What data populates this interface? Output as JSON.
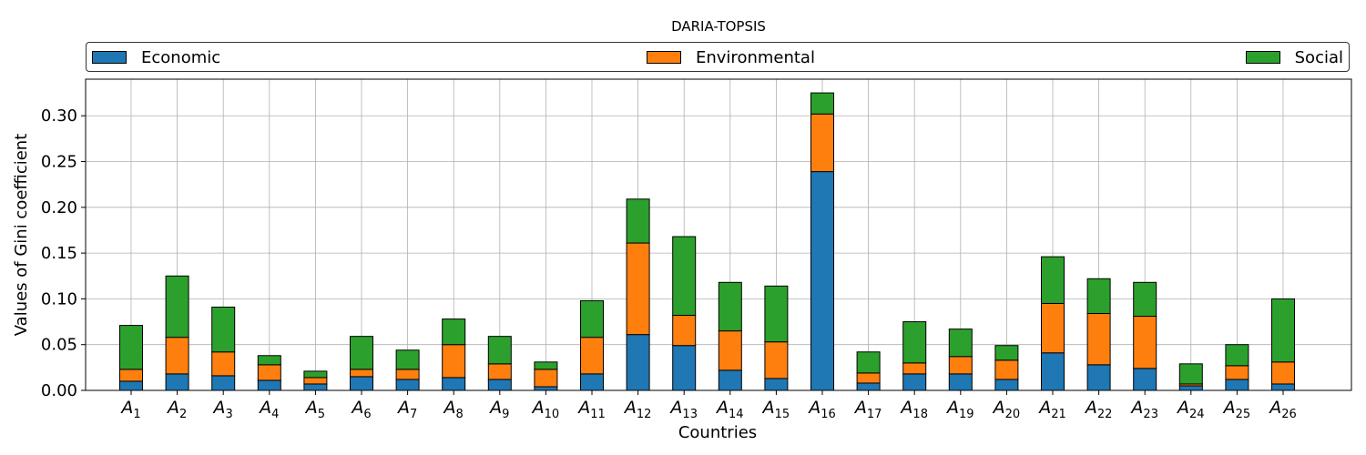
{
  "chart_data": {
    "type": "bar",
    "stacked": true,
    "title": "DARIA-TOPSIS",
    "xlabel": "Countries",
    "ylabel": "Values of Gini coefficient",
    "ylim": [
      0,
      0.34
    ],
    "yticks": [
      "0.00",
      "0.05",
      "0.10",
      "0.15",
      "0.20",
      "0.25",
      "0.30"
    ],
    "grid": true,
    "legend_position": "top, spanning full width",
    "categories": [
      {
        "base": "A",
        "sub": "1"
      },
      {
        "base": "A",
        "sub": "2"
      },
      {
        "base": "A",
        "sub": "3"
      },
      {
        "base": "A",
        "sub": "4"
      },
      {
        "base": "A",
        "sub": "5"
      },
      {
        "base": "A",
        "sub": "6"
      },
      {
        "base": "A",
        "sub": "7"
      },
      {
        "base": "A",
        "sub": "8"
      },
      {
        "base": "A",
        "sub": "9"
      },
      {
        "base": "A",
        "sub": "10"
      },
      {
        "base": "A",
        "sub": "11"
      },
      {
        "base": "A",
        "sub": "12"
      },
      {
        "base": "A",
        "sub": "13"
      },
      {
        "base": "A",
        "sub": "14"
      },
      {
        "base": "A",
        "sub": "15"
      },
      {
        "base": "A",
        "sub": "16"
      },
      {
        "base": "A",
        "sub": "17"
      },
      {
        "base": "A",
        "sub": "18"
      },
      {
        "base": "A",
        "sub": "19"
      },
      {
        "base": "A",
        "sub": "20"
      },
      {
        "base": "A",
        "sub": "21"
      },
      {
        "base": "A",
        "sub": "22"
      },
      {
        "base": "A",
        "sub": "23"
      },
      {
        "base": "A",
        "sub": "24"
      },
      {
        "base": "A",
        "sub": "25"
      },
      {
        "base": "A",
        "sub": "26"
      }
    ],
    "series": [
      {
        "name": "Economic",
        "color": "#1f77b4",
        "values": [
          0.01,
          0.018,
          0.016,
          0.011,
          0.007,
          0.015,
          0.012,
          0.014,
          0.012,
          0.004,
          0.018,
          0.061,
          0.049,
          0.022,
          0.013,
          0.239,
          0.008,
          0.018,
          0.018,
          0.012,
          0.041,
          0.028,
          0.024,
          0.005,
          0.012,
          0.007
        ]
      },
      {
        "name": "Environmental",
        "color": "#ff7f0e",
        "values": [
          0.013,
          0.04,
          0.026,
          0.017,
          0.007,
          0.008,
          0.011,
          0.036,
          0.017,
          0.019,
          0.04,
          0.1,
          0.033,
          0.043,
          0.04,
          0.063,
          0.011,
          0.012,
          0.019,
          0.021,
          0.054,
          0.056,
          0.057,
          0.002,
          0.015,
          0.024
        ]
      },
      {
        "name": "Social",
        "color": "#2ca02c",
        "values": [
          0.048,
          0.067,
          0.049,
          0.01,
          0.007,
          0.036,
          0.021,
          0.028,
          0.03,
          0.008,
          0.04,
          0.048,
          0.086,
          0.053,
          0.061,
          0.023,
          0.023,
          0.045,
          0.03,
          0.016,
          0.051,
          0.038,
          0.037,
          0.022,
          0.023,
          0.069
        ]
      }
    ]
  }
}
